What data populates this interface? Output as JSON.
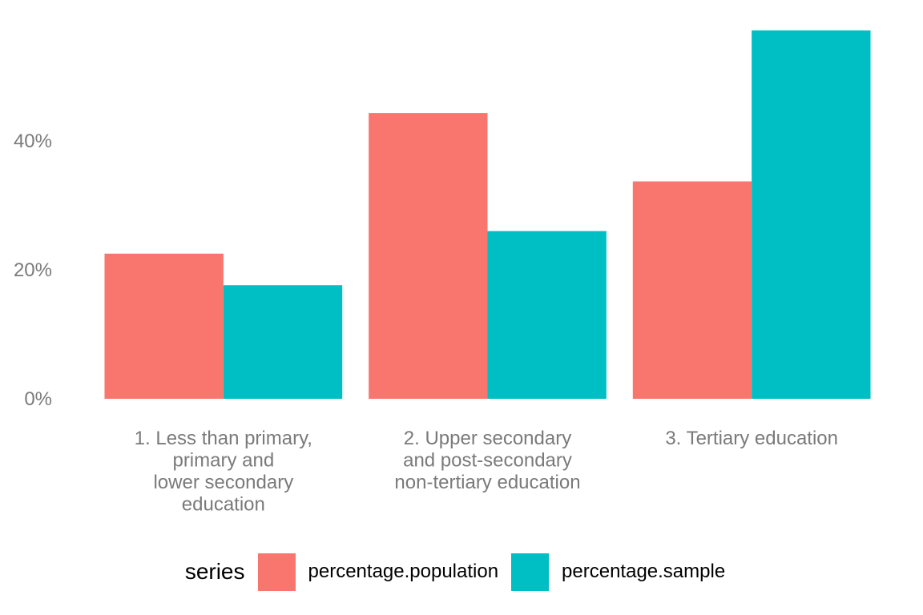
{
  "chart_data": {
    "type": "bar",
    "categories": [
      [
        "1. Less than primary,",
        "primary and",
        "lower secondary",
        "education"
      ],
      [
        "2. Upper secondary",
        "and post-secondary",
        "non-tertiary education"
      ],
      [
        "3. Tertiary education"
      ]
    ],
    "series": [
      {
        "name": "percentage.population",
        "color": "#F8766D",
        "values": [
          0.225,
          0.443,
          0.337
        ]
      },
      {
        "name": "percentage.sample",
        "color": "#00BFC4",
        "values": [
          0.176,
          0.26,
          0.571
        ]
      }
    ],
    "ylim": [
      0,
      0.571
    ],
    "yticks": [
      0,
      0.2,
      0.4
    ],
    "ytick_labels": [
      "0%",
      "20%",
      "40%"
    ],
    "grid": false,
    "legend_position": "bottom",
    "legend_title": "series"
  }
}
